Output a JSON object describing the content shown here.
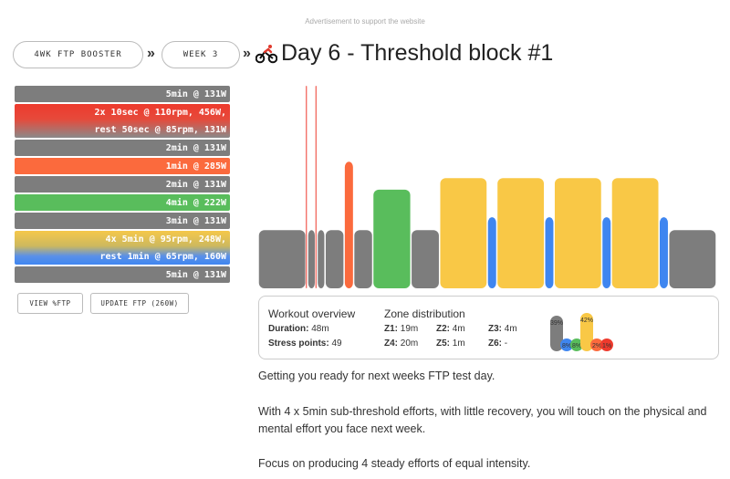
{
  "ad_note": "Advertisement to support the website",
  "breadcrumb": {
    "plan_label": "4WK FTP BOOSTER",
    "week_label": "WEEK 3",
    "separator": "»"
  },
  "title": "Day 6 - Threshold block #1",
  "steps": [
    {
      "lines": [
        "5min @ 131W"
      ],
      "zone": "grey"
    },
    {
      "lines": [
        "2x 10sec @ 110rpm, 456W,",
        "rest 50sec @ 85rpm, 131W"
      ],
      "zone": "red-grey"
    },
    {
      "lines": [
        "2min @ 131W"
      ],
      "zone": "grey"
    },
    {
      "lines": [
        "1min @ 285W"
      ],
      "zone": "orange"
    },
    {
      "lines": [
        "2min @ 131W"
      ],
      "zone": "grey"
    },
    {
      "lines": [
        "4min @ 222W"
      ],
      "zone": "green"
    },
    {
      "lines": [
        "3min @ 131W"
      ],
      "zone": "grey"
    },
    {
      "lines": [
        "4x 5min @ 95rpm, 248W,",
        "rest 1min @ 65rpm, 160W"
      ],
      "zone": "yellow-blue"
    },
    {
      "lines": [
        "5min @ 131W"
      ],
      "zone": "grey"
    }
  ],
  "buttons": {
    "view_pct": "VIEW %FTP",
    "update_ftp": "UPDATE FTP (260W)"
  },
  "overview": {
    "heading": "Workout overview",
    "duration_label": "Duration:",
    "duration_value": "48m",
    "stress_label": "Stress points:",
    "stress_value": "49"
  },
  "zone_distribution": {
    "heading": "Zone distribution",
    "zones": [
      {
        "label": "Z1:",
        "value": "19m"
      },
      {
        "label": "Z2:",
        "value": "4m"
      },
      {
        "label": "Z3:",
        "value": "4m"
      },
      {
        "label": "Z4:",
        "value": "20m"
      },
      {
        "label": "Z5:",
        "value": "1m"
      },
      {
        "label": "Z6:",
        "value": "-"
      }
    ],
    "percentages": [
      {
        "label": "39%",
        "value": 39,
        "color": "#7d7d7d"
      },
      {
        "label": "8%",
        "value": 8,
        "color": "#3f86f0"
      },
      {
        "label": "8%",
        "value": 8,
        "color": "#59bd5c"
      },
      {
        "label": "42%",
        "value": 42,
        "color": "#f9c846"
      },
      {
        "label": "2%",
        "value": 2,
        "color": "#fb6a3d"
      },
      {
        "label": "1%",
        "value": 1,
        "color": "#ee3a2d"
      }
    ]
  },
  "description": [
    "Getting you ready for next weeks FTP test day.",
    "With 4 x 5min sub-threshold efforts, with little recovery, you will touch on the physical and mental effort you face next week.",
    "Focus on producing 4 steady efforts of equal intensity."
  ],
  "workout_profile": {
    "ftp_watts": 260,
    "segments": [
      {
        "minutes": 5,
        "watts": 131,
        "zone": "grey"
      },
      {
        "minutes": 0.1667,
        "watts": 456,
        "zone": "red"
      },
      {
        "minutes": 0.8333,
        "watts": 131,
        "zone": "grey"
      },
      {
        "minutes": 0.1667,
        "watts": 456,
        "zone": "red"
      },
      {
        "minutes": 0.8333,
        "watts": 131,
        "zone": "grey"
      },
      {
        "minutes": 2,
        "watts": 131,
        "zone": "grey"
      },
      {
        "minutes": 1,
        "watts": 285,
        "zone": "orange"
      },
      {
        "minutes": 2,
        "watts": 131,
        "zone": "grey"
      },
      {
        "minutes": 4,
        "watts": 222,
        "zone": "green"
      },
      {
        "minutes": 3,
        "watts": 131,
        "zone": "grey"
      },
      {
        "minutes": 5,
        "watts": 248,
        "zone": "yellow"
      },
      {
        "minutes": 1,
        "watts": 160,
        "zone": "blue"
      },
      {
        "minutes": 5,
        "watts": 248,
        "zone": "yellow"
      },
      {
        "minutes": 1,
        "watts": 160,
        "zone": "blue"
      },
      {
        "minutes": 5,
        "watts": 248,
        "zone": "yellow"
      },
      {
        "minutes": 1,
        "watts": 160,
        "zone": "blue"
      },
      {
        "minutes": 5,
        "watts": 248,
        "zone": "yellow"
      },
      {
        "minutes": 1,
        "watts": 160,
        "zone": "blue"
      },
      {
        "minutes": 5,
        "watts": 131,
        "zone": "grey"
      }
    ]
  },
  "colors": {
    "grey": "#7d7d7d",
    "red": "#ee3a2d",
    "orange": "#fb6a3d",
    "green": "#59bd5c",
    "yellow": "#f9c846",
    "blue": "#3f86f0"
  }
}
